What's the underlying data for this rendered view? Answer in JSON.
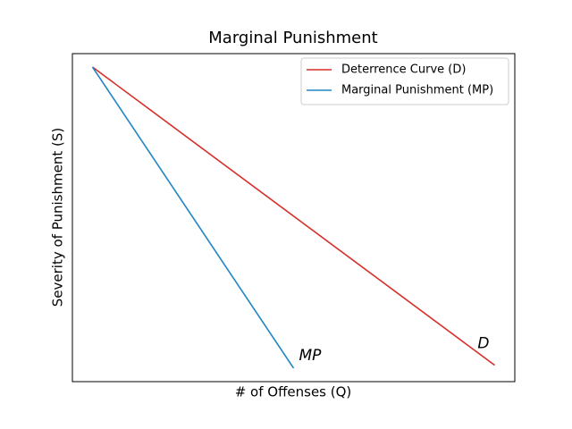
{
  "chart_data": {
    "type": "line",
    "title": "Marginal Punishment",
    "x_label": "# of Offenses (Q)",
    "y_label": "Severity of Punishment (S)",
    "xlim": [
      -0.5,
      10.5
    ],
    "ylim": [
      -0.55,
      10.45
    ],
    "legend": "upper right",
    "series": [
      {
        "name": "Deterrence Curve (D)",
        "label": "D",
        "color": "#d62f2a",
        "x": [
          0,
          10
        ],
        "values": [
          10,
          0
        ]
      },
      {
        "name": "Marginal Punishment (MP)",
        "label": "MP",
        "color": "#1f85c4",
        "x": [
          0,
          5
        ],
        "values": [
          10,
          -0.1
        ]
      }
    ]
  }
}
